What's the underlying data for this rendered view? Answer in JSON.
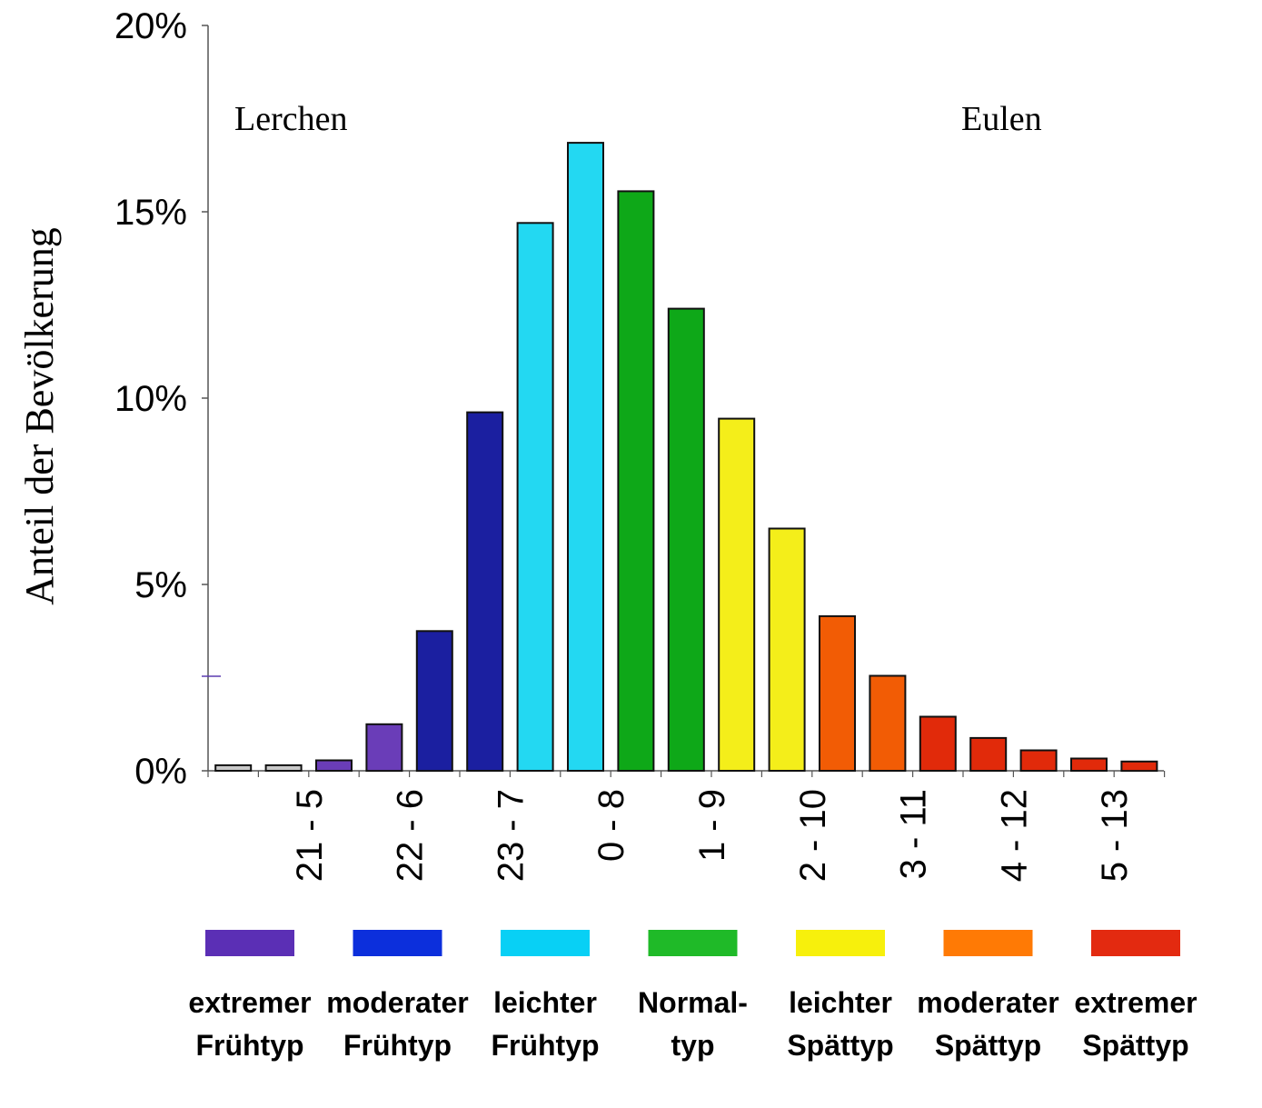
{
  "chart_data": {
    "type": "bar",
    "ylabel": "Anteil der Bevölkerung",
    "ylim": [
      0,
      20
    ],
    "y_ticks": [
      "0%",
      "5%",
      "10%",
      "15%",
      "20%"
    ],
    "y_tick_values": [
      0,
      5,
      10,
      15,
      20
    ],
    "x_tick_labels": [
      "21 - 5",
      "22 - 6",
      "23 - 7",
      "0 - 8",
      "1 - 9",
      "2 - 10",
      "3 - 11",
      "4 - 12",
      "5 - 13"
    ],
    "annotations": {
      "left": "Lerchen",
      "right": "Eulen"
    },
    "values": [
      0.15,
      0.15,
      0.28,
      1.25,
      3.75,
      9.62,
      14.7,
      16.85,
      15.55,
      12.4,
      9.45,
      6.5,
      4.15,
      2.55,
      1.45,
      0.88,
      0.55,
      0.33,
      0.25
    ],
    "bar_colors": [
      "#c9c9c9",
      "#c9c9c9",
      "#6a3db8",
      "#6a3db8",
      "#1b1fa0",
      "#1b1fa0",
      "#23d8f2",
      "#23d8f2",
      "#0ea818",
      "#0ea818",
      "#f4ee1a",
      "#f4ee1a",
      "#f25c05",
      "#f25c05",
      "#e12a0a",
      "#e12a0a",
      "#e12a0a",
      "#e12a0a",
      "#e12a0a"
    ],
    "legend": [
      {
        "color": "#5b2fb5",
        "line1": "extremer",
        "line2": "Frühtyp"
      },
      {
        "color": "#0c2fdc",
        "line1": "moderater",
        "line2": "Frühtyp"
      },
      {
        "color": "#08d0f5",
        "line1": "leichter",
        "line2": "Frühtyp"
      },
      {
        "color": "#1fba28",
        "line1": "Normal-",
        "line2": "typ"
      },
      {
        "color": "#f7f00c",
        "line1": "leichter",
        "line2": "Spättyp"
      },
      {
        "color": "#ff7a05",
        "line1": "moderater",
        "line2": "Spättyp"
      },
      {
        "color": "#e32a10",
        "line1": "extremer",
        "line2": "Spättyp"
      }
    ],
    "grid": false,
    "legend_position": "bottom"
  }
}
